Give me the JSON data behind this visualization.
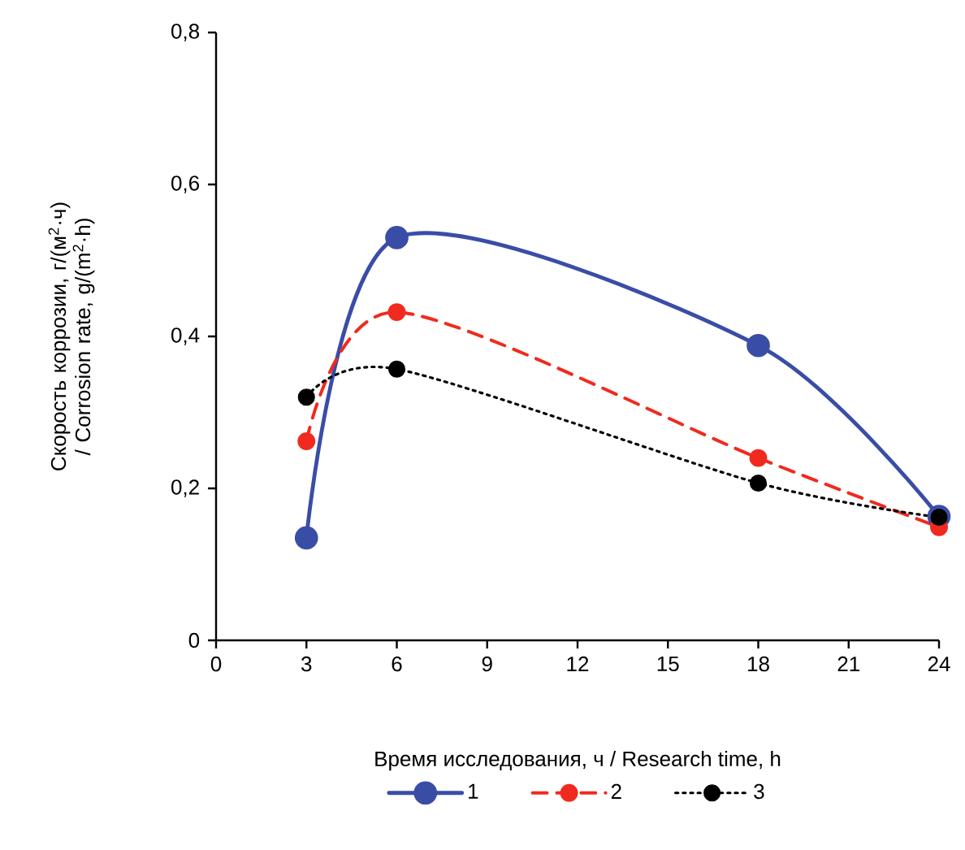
{
  "chart_data": {
    "type": "line",
    "xlabel": "Время исследования, ч / Research time, h",
    "ylabel": "Скорость коррозии, г/(м$^{2}$·ч) / Corrosion rate, g/(m$^{2}$·h)",
    "x": [
      3,
      6,
      18,
      24
    ],
    "series": [
      {
        "name": "1",
        "color": "#3a4da6",
        "line_style": "solid",
        "values": [
          0.135,
          0.53,
          0.388,
          0.163
        ]
      },
      {
        "name": "2",
        "color": "#f02a1e",
        "line_style": "dashed",
        "values": [
          0.262,
          0.432,
          0.24,
          0.149
        ]
      },
      {
        "name": "3",
        "color": "#000000",
        "line_style": "dotted",
        "values": [
          0.32,
          0.357,
          0.207,
          0.162
        ]
      }
    ],
    "xlim": [
      0,
      24
    ],
    "xticks": [
      0,
      3,
      6,
      9,
      12,
      15,
      18,
      21,
      24
    ],
    "ylim": [
      0,
      0.8
    ],
    "yticks": [
      0,
      {
        "value": 0.2,
        "label": "0,2"
      },
      {
        "value": 0.4,
        "label": "0,4"
      },
      {
        "value": 0.6,
        "label": "0,6"
      },
      {
        "value": 0.8,
        "label": "0,8"
      }
    ],
    "marker": "circle",
    "legend": "bottom",
    "grid": false
  }
}
